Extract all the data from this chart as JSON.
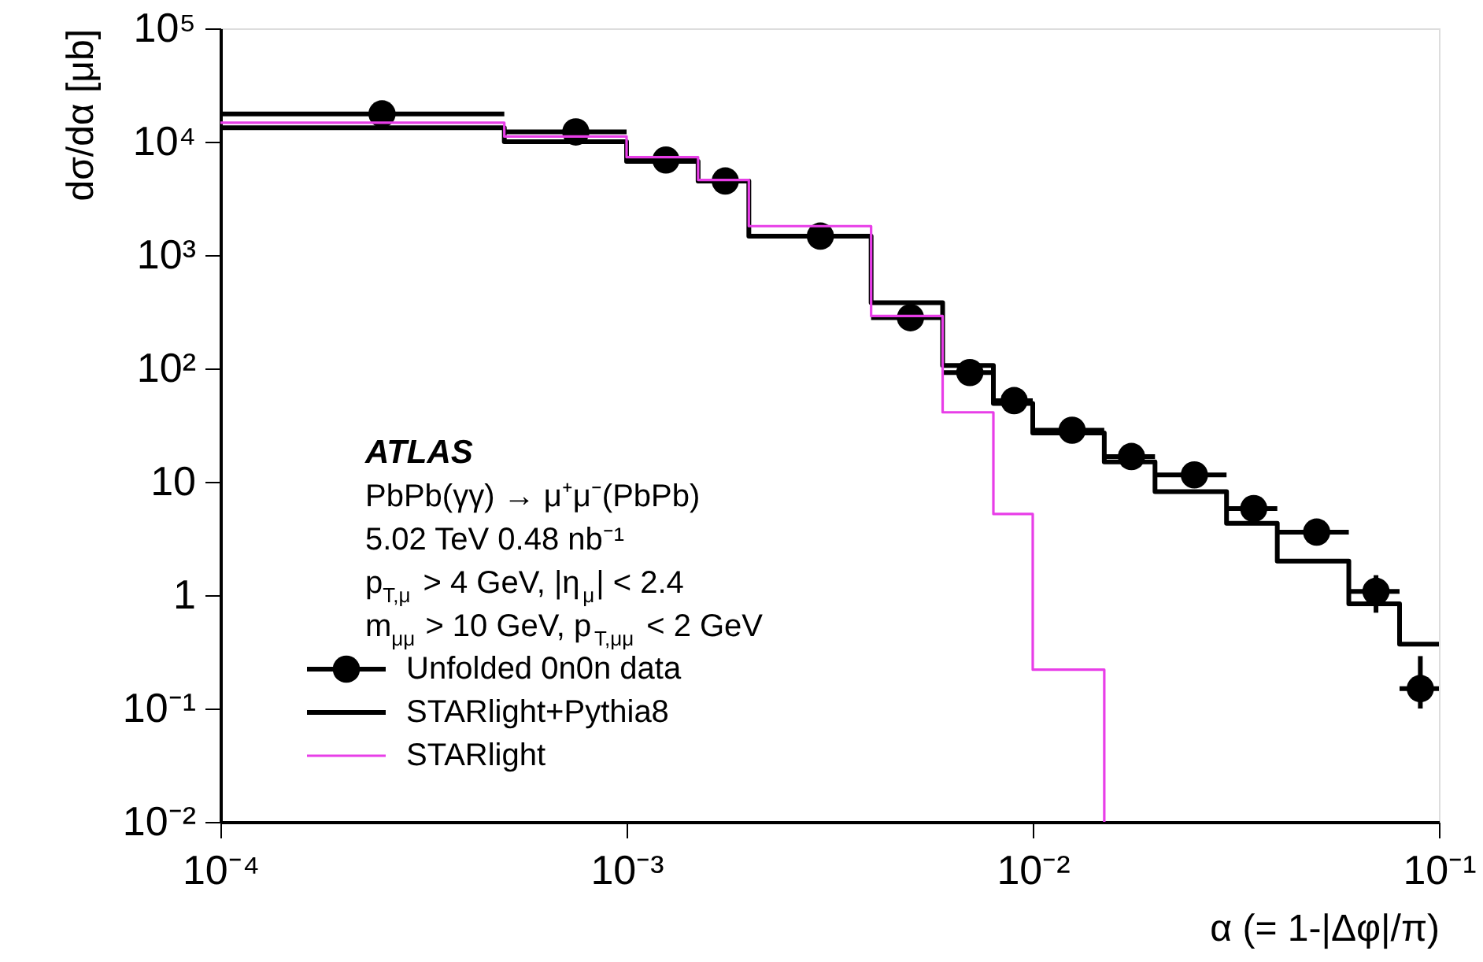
{
  "chart_data": {
    "type": "histogram",
    "bins": [
      0.0001,
      0.0005,
      0.001,
      0.0015,
      0.002,
      0.004,
      0.006,
      0.008,
      0.01,
      0.015,
      0.02,
      0.03,
      0.04,
      0.06,
      0.08,
      0.1
    ],
    "series": [
      {
        "name": "Unfolded 0n0n data",
        "type": "scatter",
        "color": "#000000",
        "marker": "circle",
        "x": [
          0.00025,
          0.00075,
          0.00125,
          0.00175,
          0.003,
          0.005,
          0.007,
          0.009,
          0.0125,
          0.0175,
          0.025,
          0.035,
          0.05,
          0.07,
          0.09
        ],
        "values": [
          17600,
          12200,
          6900,
          4500,
          1470,
          280,
          92,
          52,
          28.5,
          16.7,
          11.5,
          5.8,
          3.6,
          1.08,
          0.15
        ],
        "xerrors": [
          [
            0.0001,
            0.0005
          ],
          [
            0.0005,
            0.001
          ],
          [
            0.001,
            0.0015
          ],
          [
            0.0015,
            0.002
          ],
          [
            0.002,
            0.004
          ],
          [
            0.004,
            0.006
          ],
          [
            0.006,
            0.008
          ],
          [
            0.008,
            0.01
          ],
          [
            0.01,
            0.015
          ],
          [
            0.015,
            0.02
          ],
          [
            0.02,
            0.03
          ],
          [
            0.03,
            0.04
          ],
          [
            0.04,
            0.06
          ],
          [
            0.06,
            0.08
          ],
          [
            0.08,
            0.1
          ]
        ],
        "errors": [
          null,
          null,
          null,
          null,
          null,
          null,
          null,
          null,
          null,
          null,
          null,
          null,
          null,
          [
            0.7,
            1.5
          ],
          [
            0.1,
            0.29
          ]
        ]
      },
      {
        "name": "STARlight+Pythia8",
        "color": "#000000",
        "values": [
          13300,
          10000,
          6700,
          4500,
          1470,
          380,
          106,
          49,
          27,
          15,
          8.2,
          4.3,
          2.0,
          0.84,
          0.37
        ]
      },
      {
        "name": "STARlight",
        "color": "#e83ee8",
        "bins": [
          0.0001,
          0.0005,
          0.001,
          0.0015,
          0.002,
          0.004,
          0.006,
          0.008,
          0.01,
          0.015
        ],
        "values": [
          14700,
          11100,
          7300,
          4600,
          1800,
          290,
          41,
          5.2,
          0.22
        ]
      }
    ],
    "xlim": [
      0.0001,
      0.1
    ],
    "ylim": [
      0.01,
      100000
    ],
    "log": "xy",
    "xticks": [
      {
        "value": 0.0001,
        "label": "10⁻⁴"
      },
      {
        "value": 0.001,
        "label": "10⁻³"
      },
      {
        "value": 0.01,
        "label": "10⁻²"
      },
      {
        "value": 0.1,
        "label": "10⁻¹"
      }
    ],
    "yticks": [
      {
        "value": 0.01,
        "label": "10⁻²"
      },
      {
        "value": 0.1,
        "label": "10⁻¹"
      },
      1,
      10,
      {
        "value": 100,
        "label": "10²"
      },
      {
        "value": 1000,
        "label": "10³"
      },
      {
        "value": 10000,
        "label": "10⁴"
      },
      {
        "value": 100000,
        "label": "10⁵"
      }
    ],
    "xlabel": "α (= 1-|Δφ|/π)",
    "ylabel": "dσ/dα [μb]",
    "annotations": [
      "ATLAS",
      "PbPb(γγ) → μ⁺μ⁻(PbPb)",
      "5.02 TeV 0.48 nb⁻¹",
      "p$_{T,μ}$ > 4 GeV, |η$_{μ}$| < 2.4",
      "m$_{μμ}$ > 10 GeV, p$_{T,μμ}$ < 2 GeV"
    ],
    "legend": "bottom left",
    "grid": false
  }
}
